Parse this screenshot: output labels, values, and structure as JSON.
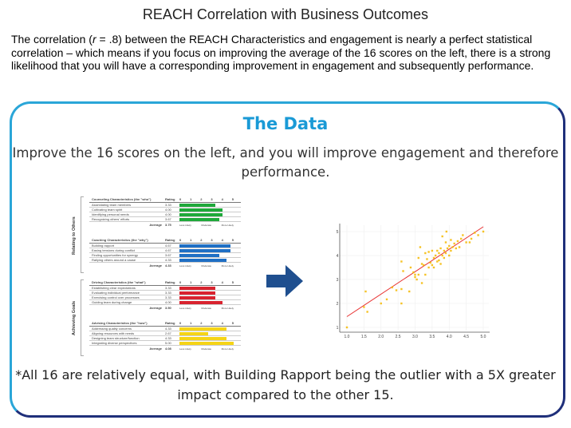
{
  "title": "REACH Correlation with Business Outcomes",
  "intro_pre": "The correlation (",
  "intro_r": "r",
  "intro_post": " = .8) between the REACH Characteristics and engagement is nearly a perfect statistical correlation – which means if you focus on improving the average of the 16 scores on the left, there is a strong likelihood that you will have a corresponding improvement in engagement and subsequently performance.",
  "data_title": "The Data",
  "data_subtitle": "Improve the 16 scores on the left, and you will improve engagement and therefore performance.",
  "footnote": "*All 16 are relatively equal, with Building Rapport being the outlier with a 5X greater impact compared to the other 15.",
  "groups": [
    {
      "label": "Relating to Others",
      "tables": [
        {
          "header": "Counseling Characteristics (the \"who\")",
          "rating_label": "Rating",
          "color": "#1fa83a",
          "rows": [
            [
              "Assimilating team members",
              "3.33",
              3.33
            ],
            [
              "Cultivating team spirit",
              "4.00",
              4.0
            ],
            [
              "Identifying personal needs",
              "4.00",
              4.0
            ],
            [
              "Recognizing others' efforts",
              "3.67",
              3.67
            ]
          ],
          "avg_label": "Average",
          "avg": "3.75"
        },
        {
          "header": "Coaching Characteristics (the \"why\")",
          "rating_label": "Rating",
          "color": "#1f6fc4",
          "rows": [
            [
              "Building rapport",
              "4.67",
              4.67
            ],
            [
              "Easing tensions during conflict",
              "4.67",
              4.67
            ],
            [
              "Finding opportunities for synergy",
              "3.67",
              3.67
            ],
            [
              "Rallying others around a cause",
              "4.33",
              4.33
            ]
          ],
          "avg_label": "Average",
          "avg": "4.33"
        }
      ]
    },
    {
      "label": "Achieving Goals",
      "tables": [
        {
          "header": "Driving Characteristics (the \"what\")",
          "rating_label": "Rating",
          "color": "#d8232f",
          "rows": [
            [
              "Establishing clear expectations",
              "3.33",
              3.33
            ],
            [
              "Evaluating individual performance",
              "3.33",
              3.33
            ],
            [
              "Exercising control over processes",
              "3.33",
              3.33
            ],
            [
              "Guiding team during change",
              "4.00",
              4.0
            ]
          ],
          "avg_label": "Average",
          "avg": "3.50"
        },
        {
          "header": "Advising Characteristics (the \"how\")",
          "rating_label": "Rating",
          "color": "#f5d416",
          "rows": [
            [
              "Addressing quality concerns",
              "4.33",
              4.33
            ],
            [
              "Aligning resources with needs",
              "2.67",
              2.67
            ],
            [
              "Designing team structure/function",
              "4.33",
              4.33
            ],
            [
              "Integrating diverse perspectives",
              "5.00",
              5.0
            ]
          ],
          "avg_label": "Average",
          "avg": "4.08"
        }
      ]
    }
  ],
  "scale_ticks": [
    "0",
    "1",
    "2",
    "3",
    "4",
    "5"
  ],
  "scale_legend": [
    "Less Likely",
    "Moderate",
    "More Likely"
  ],
  "arrow_color": "#1f4f8f",
  "chart_data": {
    "type": "scatter",
    "xlim": [
      1.0,
      5.0
    ],
    "ylim": [
      1,
      5
    ],
    "xticks": [
      "1.0",
      "1.5",
      "2.0",
      "2.5",
      "3.0",
      "3.5",
      "4.0",
      "4.5",
      "5.0"
    ],
    "yticks": [
      "1",
      "2",
      "3",
      "4",
      "5"
    ],
    "grid": true,
    "point_color": "#f5b800",
    "trend_color": "#e83030",
    "trend": [
      [
        1.0,
        1.45
      ],
      [
        5.0,
        5.2
      ]
    ],
    "points": [
      [
        1.0,
        1.0
      ],
      [
        1.5,
        1.85
      ],
      [
        1.55,
        2.5
      ],
      [
        1.6,
        1.65
      ],
      [
        2.0,
        2.0
      ],
      [
        2.17,
        2.17
      ],
      [
        2.33,
        2.67
      ],
      [
        2.45,
        2.55
      ],
      [
        2.6,
        2.0
      ],
      [
        2.6,
        2.6
      ],
      [
        2.6,
        3.75
      ],
      [
        2.65,
        3.35
      ],
      [
        2.83,
        2.5
      ],
      [
        2.87,
        3.5
      ],
      [
        2.95,
        3.3
      ],
      [
        3.0,
        3.1
      ],
      [
        3.0,
        3.2
      ],
      [
        3.05,
        3.0
      ],
      [
        3.1,
        3.2
      ],
      [
        3.1,
        3.9
      ],
      [
        3.15,
        4.35
      ],
      [
        3.2,
        2.85
      ],
      [
        3.2,
        3.65
      ],
      [
        3.25,
        3.6
      ],
      [
        3.3,
        3.2
      ],
      [
        3.3,
        4.1
      ],
      [
        3.35,
        3.85
      ],
      [
        3.4,
        3.5
      ],
      [
        3.4,
        4.15
      ],
      [
        3.45,
        3.7
      ],
      [
        3.5,
        3.6
      ],
      [
        3.5,
        4.2
      ],
      [
        3.55,
        3.5
      ],
      [
        3.55,
        3.9
      ],
      [
        3.6,
        4.0
      ],
      [
        3.65,
        3.75
      ],
      [
        3.65,
        4.2
      ],
      [
        3.7,
        3.8
      ],
      [
        3.7,
        4.1
      ],
      [
        3.75,
        4.3
      ],
      [
        3.75,
        3.65
      ],
      [
        3.8,
        4.0
      ],
      [
        3.8,
        4.8
      ],
      [
        3.85,
        4.2
      ],
      [
        3.85,
        3.9
      ],
      [
        3.9,
        4.55
      ],
      [
        3.9,
        4.1
      ],
      [
        3.92,
        5.0
      ],
      [
        3.95,
        4.3
      ],
      [
        4.0,
        4.0
      ],
      [
        4.0,
        4.4
      ],
      [
        4.05,
        4.2
      ],
      [
        4.05,
        4.65
      ],
      [
        4.1,
        4.35
      ],
      [
        4.15,
        4.5
      ],
      [
        4.2,
        4.3
      ],
      [
        4.25,
        4.6
      ],
      [
        4.3,
        4.35
      ],
      [
        4.35,
        4.7
      ],
      [
        4.4,
        4.85
      ],
      [
        4.5,
        4.55
      ],
      [
        4.6,
        4.55
      ],
      [
        4.65,
        4.7
      ],
      [
        4.75,
        4.95
      ],
      [
        4.85,
        4.85
      ],
      [
        5.0,
        5.0
      ]
    ]
  }
}
